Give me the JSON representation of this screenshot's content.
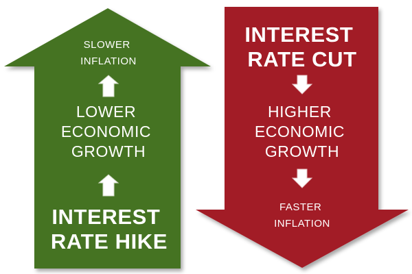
{
  "diagram": {
    "hike_arrow": {
      "top_label": [
        "SLOWER",
        "INFLATION"
      ],
      "middle_label": [
        "LOWER",
        "ECONOMIC",
        "GROWTH"
      ],
      "bottom_label": [
        "INTEREST",
        "RATE HIKE"
      ],
      "fill_color": "#447321",
      "connector_icon": "white-up-arrow-icon"
    },
    "cut_arrow": {
      "top_label": [
        "INTEREST",
        "RATE CUT"
      ],
      "middle_label": [
        "HIGHER",
        "ECONOMIC",
        "GROWTH"
      ],
      "bottom_label": [
        "FASTER",
        "INFLATION"
      ],
      "fill_color": "#a21b26",
      "connector_icon": "white-down-arrow-icon"
    }
  }
}
